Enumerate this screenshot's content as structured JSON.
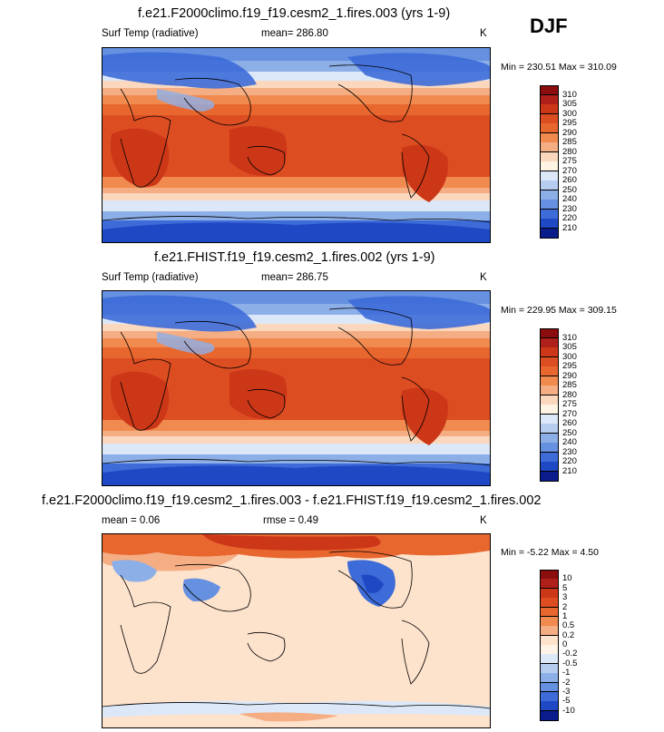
{
  "header": {
    "season": "DJF"
  },
  "panels": [
    {
      "title": "f.e21.F2000climo.f19_f19.cesm2_1.fires.003 (yrs 1-9)",
      "variable": "Surf Temp (radiative)",
      "mean_text": "mean= 286.80",
      "units": "K",
      "minmax": "Min = 230.51 Max = 310.09"
    },
    {
      "title": "f.e21.FHIST.f19_f19.cesm2_1.fires.002 (yrs 1-9)",
      "variable": "Surf Temp (radiative)",
      "mean_text": "mean= 286.75",
      "units": "K",
      "minmax": "Min = 229.95 Max = 309.15"
    },
    {
      "title": "f.e21.F2000climo.f19_f19.cesm2_1.fires.003 - f.e21.FHIST.f19_f19.cesm2_1.fires.002",
      "mean_text": "mean =   0.06",
      "rmse_text": "rmse =   0.49",
      "units": "K",
      "minmax": "Min =  -5.22 Max =   4.50"
    }
  ],
  "colorbar_abs": {
    "labels": [
      "310",
      "305",
      "300",
      "295",
      "290",
      "285",
      "280",
      "275",
      "270",
      "260",
      "250",
      "240",
      "230",
      "220",
      "210"
    ],
    "colors": [
      "#8b0d0d",
      "#b0201a",
      "#cc3718",
      "#dd4d22",
      "#e8672f",
      "#f08a4f",
      "#f5ad83",
      "#fbd8bd",
      "#fff3e3",
      "#dce8f8",
      "#b6cdf0",
      "#8dafe8",
      "#6690e0",
      "#3d6bd8",
      "#1f48c4",
      "#0a1c8c"
    ]
  },
  "colorbar_diff": {
    "labels": [
      "10",
      "5",
      "3",
      "2",
      "1",
      "0.5",
      "0.2",
      "0",
      "-0.2",
      "-0.5",
      "-1",
      "-2",
      "-3",
      "-5",
      "-10"
    ],
    "colors": [
      "#8b0d0d",
      "#b0201a",
      "#cc3718",
      "#dd4d22",
      "#e8672f",
      "#f08a4f",
      "#f5ad83",
      "#fde2cc",
      "#fff3e6",
      "#dce8f8",
      "#b6cdf0",
      "#8dafe8",
      "#6690e0",
      "#3d6bd8",
      "#1f48c4",
      "#0a1c8c"
    ]
  }
}
